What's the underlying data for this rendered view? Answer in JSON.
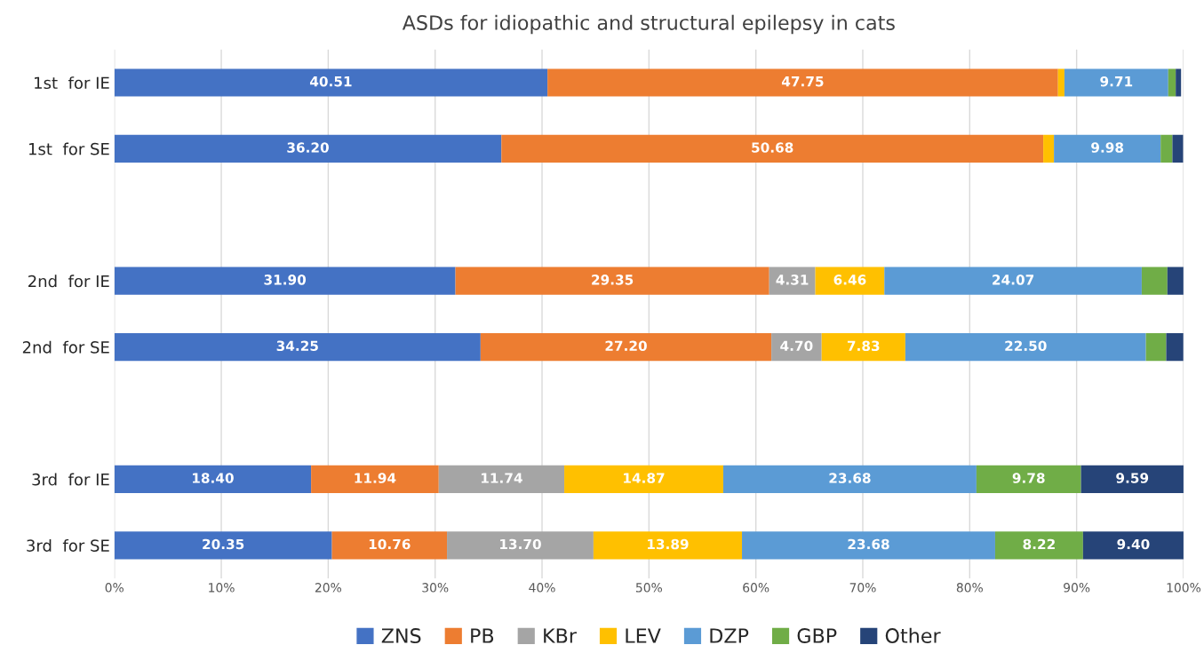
{
  "chart_data": {
    "type": "bar",
    "orientation": "horizontal",
    "stacked": true,
    "title": "ASDs for idiopathic and structural epilepsy in cats",
    "categories": [
      "1st  for IE",
      "1st  for SE",
      null,
      "2nd  for IE",
      "2nd  for SE",
      null,
      "3rd  for IE",
      "3rd  for SE"
    ],
    "series": [
      {
        "name": "ZNS",
        "color": "#4472c4",
        "values": [
          40.51,
          36.2,
          null,
          31.9,
          34.25,
          null,
          18.4,
          20.35
        ],
        "value_labels": [
          "40.51",
          "36.20",
          null,
          "31.90",
          "34.25",
          null,
          "18.40",
          "20.35"
        ]
      },
      {
        "name": "PB",
        "color": "#ed7d31",
        "values": [
          47.75,
          50.68,
          null,
          29.35,
          27.2,
          null,
          11.94,
          10.76
        ],
        "value_labels": [
          "47.75",
          "50.68",
          null,
          "29.35",
          "27.20",
          null,
          "11.94",
          "10.76"
        ]
      },
      {
        "name": "KBr",
        "color": "#a5a5a5",
        "values": [
          0,
          0,
          null,
          4.31,
          4.7,
          null,
          11.74,
          13.7
        ],
        "value_labels": [
          null,
          null,
          null,
          "4.31",
          "4.70",
          null,
          "11.74",
          "13.70"
        ]
      },
      {
        "name": "LEV",
        "color": "#ffc000",
        "values": [
          0.6,
          1.0,
          null,
          6.46,
          7.83,
          null,
          14.87,
          13.89
        ],
        "value_labels": [
          null,
          null,
          null,
          "6.46",
          "7.83",
          null,
          "14.87",
          "13.89"
        ]
      },
      {
        "name": "DZP",
        "color": "#5b9bd5",
        "values": [
          9.71,
          9.98,
          null,
          24.07,
          22.5,
          null,
          23.68,
          23.68
        ],
        "value_labels": [
          "9.71",
          "9.98",
          null,
          "24.07",
          "22.50",
          null,
          "23.68",
          "23.68"
        ]
      },
      {
        "name": "GBP",
        "color": "#70ad47",
        "values": [
          0.7,
          1.1,
          null,
          2.4,
          1.9,
          null,
          9.78,
          8.22
        ],
        "value_labels": [
          null,
          null,
          null,
          null,
          null,
          null,
          "9.78",
          "8.22"
        ]
      },
      {
        "name": "Other",
        "color": "#264478",
        "values": [
          0.5,
          1.0,
          null,
          1.5,
          1.6,
          null,
          9.59,
          9.4
        ],
        "value_labels": [
          null,
          null,
          null,
          null,
          null,
          null,
          "9.59",
          "9.40"
        ]
      }
    ],
    "xlim": [
      0,
      100
    ],
    "xticks": [
      {
        "value": 0,
        "label": "0%"
      },
      {
        "value": 10,
        "label": "10%"
      },
      {
        "value": 20,
        "label": "20%"
      },
      {
        "value": 30,
        "label": "30%"
      },
      {
        "value": 40,
        "label": "40%"
      },
      {
        "value": 50,
        "label": "50%"
      },
      {
        "value": 60,
        "label": "60%"
      },
      {
        "value": 70,
        "label": "70%"
      },
      {
        "value": 80,
        "label": "80%"
      },
      {
        "value": 90,
        "label": "90%"
      },
      {
        "value": 100,
        "label": "100%"
      }
    ],
    "grid": "x",
    "legend": "bottom"
  }
}
